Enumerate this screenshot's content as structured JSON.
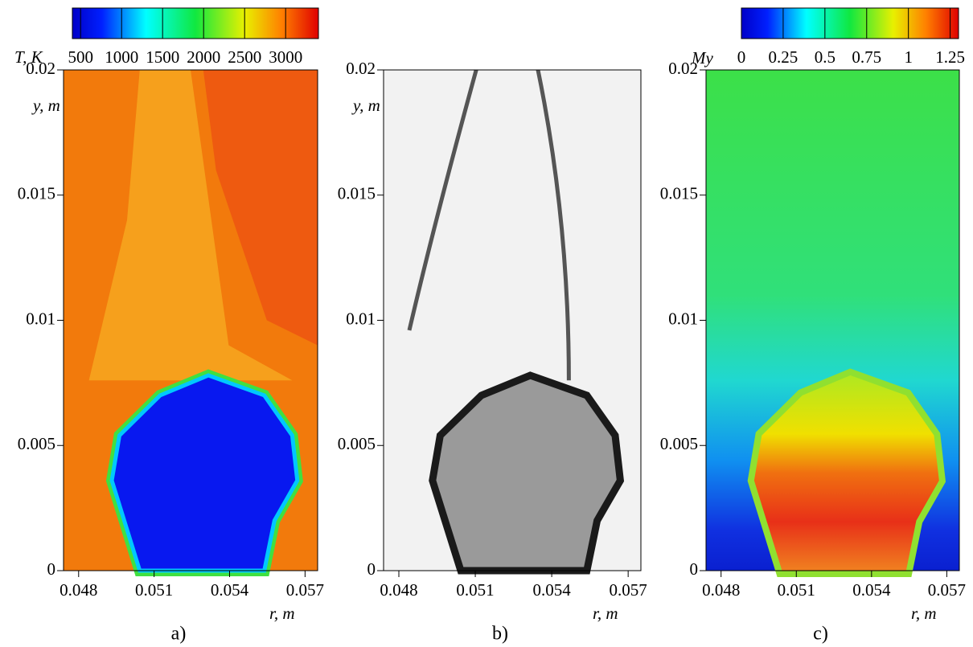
{
  "chart_data": [
    {
      "type": "contour",
      "colormap": "jet",
      "panel_label": "a)",
      "xlabel": "r, m",
      "ylabel": "y, m",
      "xlim": [
        0.0474,
        0.0575
      ],
      "xticks": [
        0.048,
        0.051,
        0.054,
        0.057
      ],
      "ylim": [
        0,
        0.02
      ],
      "yticks": [
        0,
        0.005,
        0.01,
        0.015,
        0.02
      ],
      "colorbar": {
        "label": "T, K",
        "lim": [
          400,
          3400
        ],
        "ticks": [
          500,
          1000,
          1500,
          2000,
          2500,
          3000
        ]
      }
    },
    {
      "type": "contour",
      "colormap": "gray",
      "panel_label": "b)",
      "xlabel": "r, m",
      "ylabel": "y, m",
      "xlim": [
        0.0474,
        0.0575
      ],
      "xticks": [
        0.048,
        0.051,
        0.054,
        0.057
      ],
      "ylim": [
        0,
        0.02
      ],
      "yticks": [
        0,
        0.005,
        0.01,
        0.015,
        0.02
      ]
    },
    {
      "type": "contour",
      "colormap": "jet",
      "panel_label": "c)",
      "xlabel": "r, m",
      "ylabel": "My",
      "xlim": [
        0.0474,
        0.0575
      ],
      "xticks": [
        0.048,
        0.051,
        0.054,
        0.057
      ],
      "ylim": [
        0,
        0.02
      ],
      "yticks": [
        0,
        0.005,
        0.01,
        0.015,
        0.02
      ],
      "colorbar": {
        "label": "My",
        "lim": [
          0,
          1.3
        ],
        "ticks": [
          0,
          0.25,
          0.5,
          0.75,
          1,
          1.25
        ]
      }
    }
  ]
}
